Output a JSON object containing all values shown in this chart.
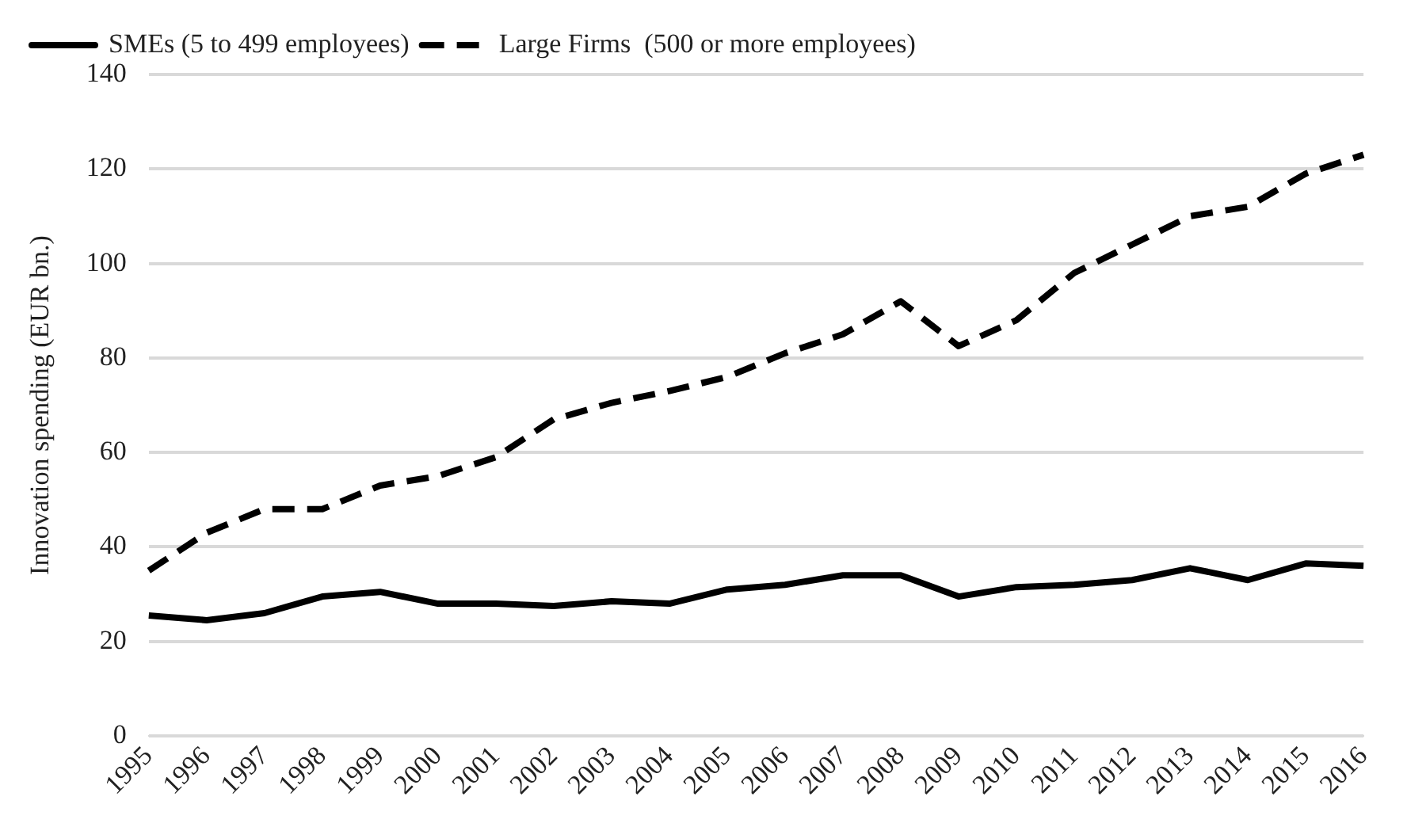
{
  "chart_data": {
    "type": "line",
    "ylabel": "Innovation spending (EUR bn.)",
    "categories": [
      "1995",
      "1996",
      "1997",
      "1998",
      "1999",
      "2000",
      "2001",
      "2002",
      "2003",
      "2004",
      "2005",
      "2006",
      "2007",
      "2008",
      "2009",
      "2010",
      "2011",
      "2012",
      "2013",
      "2014",
      "2015",
      "2016"
    ],
    "series": [
      {
        "name": "SMEs (5 to 499 employees)",
        "color": "#000000",
        "line_style": "solid",
        "values": [
          25.5,
          24.5,
          26,
          29.5,
          30.5,
          28,
          28,
          27.5,
          28.5,
          28,
          31,
          32,
          34,
          34,
          29.5,
          31.5,
          32,
          33,
          35.5,
          33,
          36.5,
          36
        ]
      },
      {
        "name": "Large Firms  (500 or more employees)",
        "color": "#000000",
        "line_style": "dashed",
        "values": [
          35,
          43,
          48,
          48,
          53,
          55,
          59,
          67,
          70.5,
          73,
          76,
          81,
          85,
          92,
          82.5,
          88,
          98,
          104,
          110,
          112,
          119,
          123
        ]
      }
    ],
    "ylim": [
      0,
      140
    ],
    "yticks": [
      0,
      20,
      40,
      60,
      80,
      100,
      120,
      140
    ],
    "grid": "y",
    "legend": "top left",
    "marker": "none"
  }
}
